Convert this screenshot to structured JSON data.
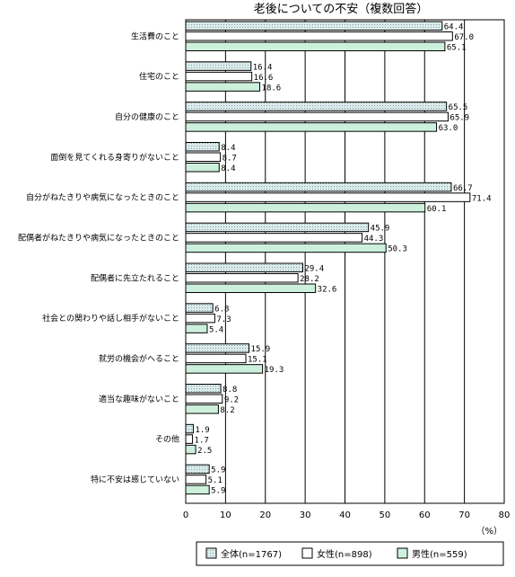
{
  "chart_data": {
    "type": "bar",
    "orientation": "horizontal",
    "title": "老後についての不安（複数回答）",
    "categories": [
      "生活費のこと",
      "住宅のこと",
      "自分の健康のこと",
      "面倒を見てくれる身寄りがないこと",
      "自分がねたきりや病気になったときのこと",
      "配偶者がねたきりや病気になったときのこと",
      "配偶者に先立たれること",
      "社会との関わりや話し相手がないこと",
      "就労の機会がへること",
      "適当な趣味がないこと",
      "その他",
      "特に不安は感じていない"
    ],
    "series": [
      {
        "name": "全体(n=1767)",
        "color": "#dcecec",
        "pattern": "dots",
        "values": [
          64.4,
          16.4,
          65.5,
          8.4,
          66.7,
          45.9,
          29.4,
          6.8,
          15.9,
          8.8,
          1.9,
          5.9
        ]
      },
      {
        "name": "女性(n=898)",
        "color": "#ffffff",
        "pattern": "none",
        "values": [
          67.0,
          16.6,
          65.9,
          8.7,
          71.4,
          44.3,
          28.2,
          7.3,
          15.1,
          9.2,
          1.7,
          5.1
        ]
      },
      {
        "name": "男性(n=559)",
        "color": "#ccf0dc",
        "pattern": "none",
        "values": [
          65.1,
          18.6,
          63.0,
          8.4,
          60.1,
          50.3,
          32.6,
          5.4,
          19.3,
          8.2,
          2.5,
          5.9
        ]
      }
    ],
    "value_labels": [
      [
        "64.4",
        "67.0",
        "65.1"
      ],
      [
        "16.4",
        "16.6",
        "18.6"
      ],
      [
        "65.5",
        "65.9",
        "63.0"
      ],
      [
        "8.4",
        "8.7",
        "8.4"
      ],
      [
        "66.7",
        "71.4",
        "60.1"
      ],
      [
        "45.9",
        "44.3",
        "50.3"
      ],
      [
        "29.4",
        "28.2",
        "32.6"
      ],
      [
        "6.8",
        "7.3",
        "5.4"
      ],
      [
        "15.9",
        "15.1",
        "19.3"
      ],
      [
        "8.8",
        "9.2",
        "8.2"
      ],
      [
        "1.9",
        "1.7",
        "2.5"
      ],
      [
        "5.9",
        "5.1",
        "5.9"
      ]
    ],
    "xlim": [
      0,
      80
    ],
    "xticks": [
      "0",
      "10",
      "20",
      "30",
      "40",
      "50",
      "60",
      "70",
      "80"
    ],
    "xtick_values": [
      0,
      10,
      20,
      30,
      40,
      50,
      60,
      70,
      80
    ],
    "xunit": "（%）",
    "grid": true,
    "legend_position": "bottom"
  }
}
